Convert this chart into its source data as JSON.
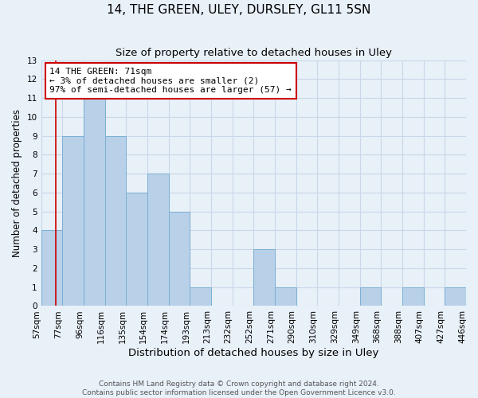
{
  "title": "14, THE GREEN, ULEY, DURSLEY, GL11 5SN",
  "subtitle": "Size of property relative to detached houses in Uley",
  "xlabel": "Distribution of detached houses by size in Uley",
  "ylabel": "Number of detached properties",
  "bin_edges": [
    57,
    77,
    96,
    116,
    135,
    154,
    174,
    193,
    213,
    232,
    252,
    271,
    290,
    310,
    329,
    349,
    368,
    388,
    407,
    427,
    446
  ],
  "bin_labels": [
    "57sqm",
    "77sqm",
    "96sqm",
    "116sqm",
    "135sqm",
    "154sqm",
    "174sqm",
    "193sqm",
    "213sqm",
    "232sqm",
    "252sqm",
    "271sqm",
    "290sqm",
    "310sqm",
    "329sqm",
    "349sqm",
    "368sqm",
    "388sqm",
    "407sqm",
    "427sqm",
    "446sqm"
  ],
  "bar_values": [
    4,
    9,
    11,
    9,
    6,
    7,
    5,
    1,
    0,
    0,
    3,
    1,
    0,
    0,
    0,
    1,
    0,
    1,
    0,
    1
  ],
  "bar_color": "#b8d0e8",
  "bar_edge_color": "#7aafd4",
  "grid_color": "#c8d8e8",
  "background_color": "#e8f0f8",
  "property_sqm": 71,
  "annotation_line1": "14 THE GREEN: 71sqm",
  "annotation_line2": "← 3% of detached houses are smaller (2)",
  "annotation_line3": "97% of semi-detached houses are larger (57) →",
  "annotation_box_color": "#ffffff",
  "annotation_box_edge": "#cc0000",
  "red_line_color": "#cc0000",
  "ylim": [
    0,
    13
  ],
  "yticks": [
    0,
    1,
    2,
    3,
    4,
    5,
    6,
    7,
    8,
    9,
    10,
    11,
    12,
    13
  ],
  "footer_text": "Contains HM Land Registry data © Crown copyright and database right 2024.\nContains public sector information licensed under the Open Government Licence v3.0.",
  "title_fontsize": 11,
  "subtitle_fontsize": 9.5,
  "xlabel_fontsize": 9.5,
  "ylabel_fontsize": 8.5,
  "tick_fontsize": 7.5,
  "annotation_fontsize": 8,
  "footer_fontsize": 6.5
}
